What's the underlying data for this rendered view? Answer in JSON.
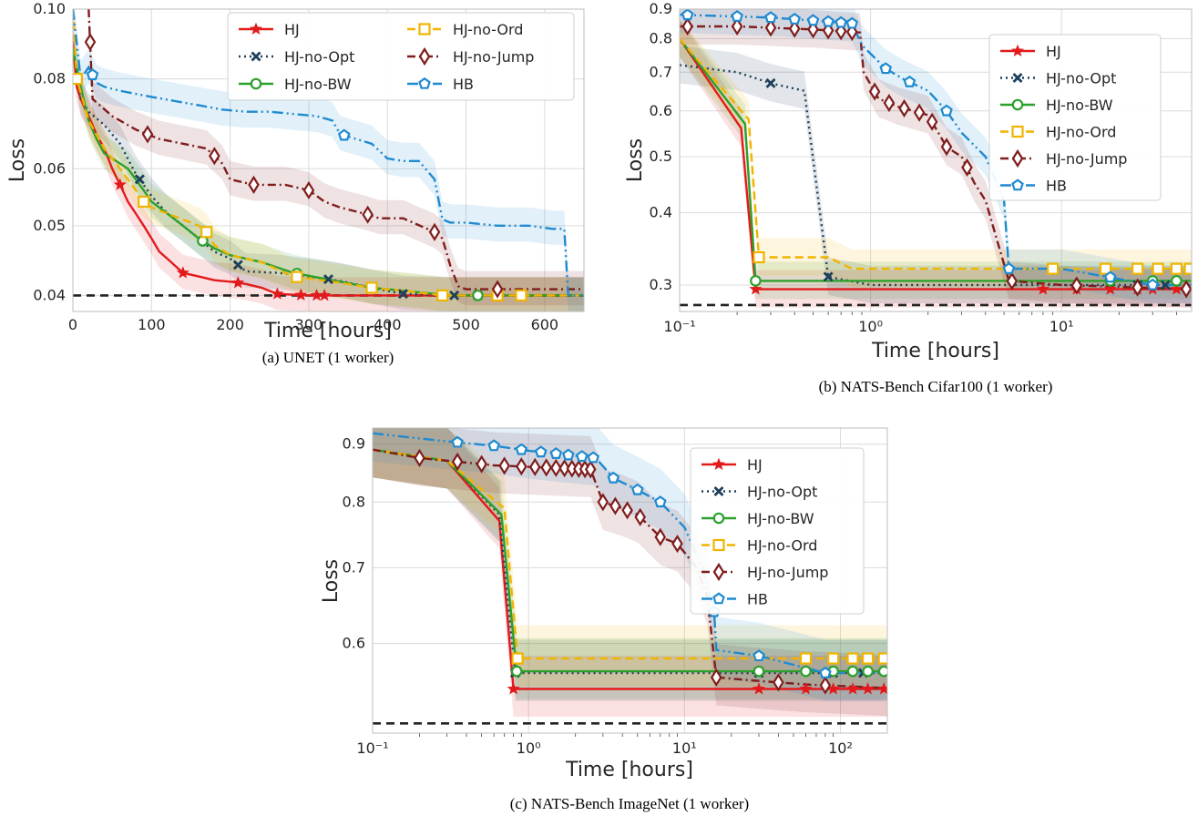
{
  "styles": {
    "HJ": {
      "color": "#e31a1c",
      "dash": "",
      "marker": "star"
    },
    "HJ-no-Opt": {
      "color": "#1f3f5a",
      "dash": "2,4",
      "marker": "x"
    },
    "HJ-no-BW": {
      "color": "#2ca02c",
      "dash": "",
      "marker": "circle"
    },
    "HJ-no-Ord": {
      "color": "#f0b400",
      "dash": "9,5",
      "marker": "square"
    },
    "HJ-no-Jump": {
      "color": "#7f1d1d",
      "dash": "9,4,2,4",
      "marker": "diamond"
    },
    "HB": {
      "color": "#1f8ad0",
      "dash": "12,4,2,4,2,4",
      "marker": "pentagon"
    }
  },
  "chart_data": [
    {
      "type": "line",
      "caption": "(a) UNET (1 worker)",
      "xlabel": "Time [hours]",
      "ylabel": "Loss",
      "xscale": "linear",
      "yscale": "log",
      "xlim": [
        0,
        650
      ],
      "ylim": [
        0.038,
        0.1
      ],
      "xticks": [
        0,
        100,
        200,
        300,
        400,
        500,
        600
      ],
      "xtick_labels": [
        "0",
        "100",
        "200",
        "300",
        "400",
        "500",
        "600"
      ],
      "yticks": [
        0.04,
        0.05,
        0.06,
        0.08,
        0.1
      ],
      "ytick_labels": [
        "0.04",
        "0.05",
        "0.06",
        "0.08",
        "0.10"
      ],
      "grid": true,
      "legend": {
        "columns": 2,
        "location": "top-right",
        "order": [
          "HJ",
          "HJ-no-Opt",
          "HJ-no-BW",
          "HJ-no-Ord",
          "HJ-no-Jump",
          "HB"
        ]
      },
      "baseline": 0.04,
      "series": [
        {
          "name": "HJ",
          "x": [
            0,
            5,
            10,
            20,
            30,
            40,
            50,
            60,
            70,
            80,
            90,
            100,
            110,
            120,
            140,
            160,
            180,
            200,
            220,
            240,
            260,
            300,
            320,
            650
          ],
          "y": [
            0.09,
            0.078,
            0.075,
            0.071,
            0.067,
            0.064,
            0.06,
            0.057,
            0.054,
            0.052,
            0.05,
            0.048,
            0.046,
            0.045,
            0.043,
            0.0425,
            0.042,
            0.0418,
            0.0415,
            0.041,
            0.0402,
            0.04,
            0.04,
            0.04
          ],
          "markers_x": [
            60,
            140,
            210,
            260,
            290,
            310,
            320
          ]
        },
        {
          "name": "HJ-no-Opt",
          "x": [
            0,
            10,
            20,
            40,
            60,
            80,
            100,
            120,
            140,
            160,
            180,
            200,
            220,
            260,
            300,
            340,
            380,
            420,
            480,
            650
          ],
          "y": [
            0.088,
            0.075,
            0.072,
            0.069,
            0.065,
            0.059,
            0.055,
            0.052,
            0.05,
            0.048,
            0.046,
            0.045,
            0.0432,
            0.043,
            0.0425,
            0.0419,
            0.041,
            0.0402,
            0.04,
            0.04
          ],
          "markers_x": [
            85,
            210,
            325,
            420,
            485,
            515
          ]
        },
        {
          "name": "HJ-no-BW",
          "x": [
            0,
            10,
            20,
            30,
            40,
            50,
            60,
            70,
            80,
            90,
            100,
            120,
            140,
            160,
            180,
            200,
            240,
            280,
            330,
            380,
            430,
            480,
            650
          ],
          "y": [
            0.088,
            0.078,
            0.07,
            0.066,
            0.063,
            0.062,
            0.061,
            0.06,
            0.058,
            0.056,
            0.054,
            0.052,
            0.05,
            0.048,
            0.0465,
            0.0455,
            0.0445,
            0.043,
            0.042,
            0.041,
            0.0405,
            0.04,
            0.04
          ],
          "markers_x": [
            165,
            285,
            380,
            515
          ]
        },
        {
          "name": "HJ-no-Ord",
          "x": [
            0,
            5,
            20,
            40,
            60,
            80,
            90,
            100,
            120,
            140,
            160,
            170,
            180,
            200,
            240,
            280,
            330,
            380,
            430,
            470,
            650
          ],
          "y": [
            0.1,
            0.08,
            0.07,
            0.064,
            0.06,
            0.056,
            0.054,
            0.053,
            0.052,
            0.051,
            0.05,
            0.049,
            0.047,
            0.0455,
            0.0445,
            0.0425,
            0.0418,
            0.041,
            0.0405,
            0.04,
            0.04
          ],
          "markers_x": [
            5,
            90,
            170,
            285,
            380,
            470,
            540,
            570
          ]
        },
        {
          "name": "HJ-no-Jump",
          "x": [
            20,
            25,
            50,
            80,
            110,
            140,
            170,
            190,
            200,
            230,
            270,
            300,
            320,
            340,
            370,
            390,
            420,
            460,
            470,
            480,
            490,
            500,
            650
          ],
          "y": [
            0.1,
            0.075,
            0.071,
            0.068,
            0.066,
            0.065,
            0.064,
            0.061,
            0.058,
            0.057,
            0.057,
            0.056,
            0.054,
            0.053,
            0.052,
            0.0512,
            0.0512,
            0.049,
            0.048,
            0.044,
            0.0412,
            0.0408,
            0.0408
          ],
          "markers_x": [
            22,
            95,
            180,
            230,
            300,
            375,
            460,
            540
          ]
        },
        {
          "name": "HB",
          "x": [
            0,
            10,
            20,
            30,
            40,
            60,
            100,
            130,
            160,
            190,
            220,
            250,
            280,
            310,
            330,
            340,
            350,
            380,
            400,
            420,
            440,
            460,
            470,
            480,
            500,
            540,
            580,
            610,
            625,
            630,
            650
          ],
          "y": [
            0.1,
            0.08,
            0.083,
            0.079,
            0.078,
            0.077,
            0.0755,
            0.0745,
            0.0735,
            0.0725,
            0.072,
            0.072,
            0.0715,
            0.071,
            0.07,
            0.067,
            0.0665,
            0.065,
            0.062,
            0.0615,
            0.0615,
            0.058,
            0.051,
            0.0505,
            0.0505,
            0.05,
            0.05,
            0.0495,
            0.0495,
            0.04,
            0.04
          ],
          "markers_x": [
            25,
            345
          ]
        }
      ]
    },
    {
      "type": "line",
      "caption": "(b) NATS-Bench Cifar100 (1 worker)",
      "xlabel": "Time [hours]",
      "ylabel": "Loss",
      "xscale": "log",
      "yscale": "log",
      "xlim": [
        0.1,
        48
      ],
      "ylim": [
        0.27,
        0.9
      ],
      "xticks": [
        0.1,
        1,
        10
      ],
      "xtick_labels": [
        "10⁻¹",
        "10⁰",
        "10¹"
      ],
      "yticks": [
        0.3,
        0.4,
        0.5,
        0.6,
        0.7,
        0.8,
        0.9
      ],
      "ytick_labels": [
        "0.3",
        "0.4",
        "0.5",
        "0.6",
        "0.7",
        "0.8",
        "0.9"
      ],
      "grid": true,
      "legend": {
        "columns": 1,
        "location": "right",
        "order": [
          "HJ",
          "HJ-no-Opt",
          "HJ-no-BW",
          "HJ-no-Ord",
          "HJ-no-Jump",
          "HB"
        ]
      },
      "baseline": 0.277,
      "series": [
        {
          "name": "HJ",
          "x": [
            0.1,
            0.21,
            0.25,
            48
          ],
          "y": [
            0.8,
            0.56,
            0.295,
            0.295
          ],
          "markers_x": [
            0.25,
            8,
            12,
            18,
            25,
            30,
            40
          ]
        },
        {
          "name": "HJ-no-Opt",
          "x": [
            0.1,
            0.2,
            0.3,
            0.45,
            0.6,
            1,
            48
          ],
          "y": [
            0.72,
            0.7,
            0.67,
            0.65,
            0.31,
            0.3,
            0.3
          ],
          "markers_x": [
            0.3,
            0.6,
            25,
            35
          ]
        },
        {
          "name": "HJ-no-BW",
          "x": [
            0.1,
            0.22,
            0.25,
            48
          ],
          "y": [
            0.8,
            0.57,
            0.305,
            0.305
          ],
          "markers_x": [
            0.25,
            18,
            30,
            40
          ]
        },
        {
          "name": "HJ-no-Ord",
          "x": [
            0.1,
            0.23,
            0.26,
            0.6,
            0.8,
            48
          ],
          "y": [
            0.8,
            0.58,
            0.335,
            0.335,
            0.32,
            0.32
          ],
          "markers_x": [
            0.26,
            9,
            17,
            25,
            32,
            40,
            47
          ]
        },
        {
          "name": "HJ-no-Jump",
          "x": [
            0.1,
            0.2,
            0.5,
            0.88,
            0.92,
            1.1,
            1.4,
            2,
            2.5,
            3,
            3.5,
            4,
            5.3,
            10,
            48
          ],
          "y": [
            0.84,
            0.84,
            0.83,
            0.82,
            0.7,
            0.63,
            0.61,
            0.59,
            0.52,
            0.5,
            0.45,
            0.42,
            0.305,
            0.3,
            0.295
          ],
          "markers_x": [
            0.11,
            0.2,
            0.3,
            0.4,
            0.5,
            0.6,
            0.7,
            0.8,
            1.05,
            1.25,
            1.5,
            1.8,
            2.1,
            2.5,
            3.2,
            5.5,
            12,
            25,
            45
          ]
        },
        {
          "name": "HB",
          "x": [
            0.1,
            0.3,
            0.5,
            0.8,
            0.9,
            1.2,
            1.5,
            2,
            2.5,
            3,
            4,
            5,
            5.3,
            10,
            30,
            48
          ],
          "y": [
            0.88,
            0.87,
            0.86,
            0.85,
            0.78,
            0.71,
            0.68,
            0.65,
            0.6,
            0.55,
            0.5,
            0.42,
            0.32,
            0.32,
            0.3,
            0.3
          ],
          "markers_x": [
            0.11,
            0.2,
            0.3,
            0.4,
            0.5,
            0.6,
            0.7,
            0.8,
            1.2,
            1.6,
            2.5,
            5.3,
            18,
            30
          ]
        }
      ]
    },
    {
      "type": "line",
      "caption": "(c) NATS-Bench ImageNet (1 worker)",
      "xlabel": "Time [hours]",
      "ylabel": "Loss",
      "xscale": "log",
      "yscale": "log",
      "xlim": [
        0.1,
        200
      ],
      "ylim": [
        0.5,
        0.93
      ],
      "xticks": [
        0.1,
        1,
        10,
        100
      ],
      "xtick_labels": [
        "10⁻¹",
        "10⁰",
        "10¹",
        "10²"
      ],
      "yticks": [
        0.6,
        0.7,
        0.8,
        0.9
      ],
      "ytick_labels": [
        "0.6",
        "0.7",
        "0.8",
        "0.9"
      ],
      "grid": true,
      "legend": {
        "columns": 1,
        "location": "top-right",
        "order": [
          "HJ",
          "HJ-no-Opt",
          "HJ-no-BW",
          "HJ-no-Ord",
          "HJ-no-Jump",
          "HB"
        ]
      },
      "baseline": 0.51,
      "series": [
        {
          "name": "HJ",
          "x": [
            0.1,
            0.3,
            0.65,
            0.8,
            200
          ],
          "y": [
            0.89,
            0.87,
            0.77,
            0.547,
            0.547
          ],
          "markers_x": [
            0.8,
            30,
            60,
            90,
            120,
            150,
            190
          ]
        },
        {
          "name": "HJ-no-Opt",
          "x": [
            0.1,
            0.3,
            0.65,
            0.82,
            200
          ],
          "y": [
            0.89,
            0.87,
            0.78,
            0.565,
            0.565
          ],
          "markers_x": [
            0.82,
            30,
            90,
            140
          ]
        },
        {
          "name": "HJ-no-BW",
          "x": [
            0.1,
            0.3,
            0.67,
            0.84,
            200
          ],
          "y": [
            0.89,
            0.87,
            0.78,
            0.567,
            0.567
          ],
          "markers_x": [
            0.84,
            30,
            60,
            90,
            120,
            150,
            190
          ]
        },
        {
          "name": "HJ-no-Ord",
          "x": [
            0.1,
            0.3,
            0.7,
            0.85,
            200
          ],
          "y": [
            0.89,
            0.87,
            0.79,
            0.582,
            0.582
          ],
          "markers_x": [
            0.85,
            60,
            90,
            120,
            150,
            190
          ]
        },
        {
          "name": "HJ-no-Jump",
          "x": [
            0.1,
            0.2,
            0.6,
            2.5,
            3,
            4,
            5,
            7,
            9,
            12,
            14,
            16,
            30,
            60,
            200
          ],
          "y": [
            0.89,
            0.875,
            0.862,
            0.855,
            0.8,
            0.79,
            0.78,
            0.745,
            0.735,
            0.7,
            0.66,
            0.56,
            0.556,
            0.552,
            0.548
          ],
          "markers_x": [
            0.2,
            0.35,
            0.5,
            0.7,
            0.9,
            1.1,
            1.3,
            1.5,
            1.7,
            1.9,
            2.1,
            2.3,
            2.5,
            3,
            3.6,
            4.3,
            5.2,
            7,
            9,
            16,
            40,
            80
          ]
        },
        {
          "name": "HB",
          "x": [
            0.1,
            0.3,
            0.6,
            1,
            2.7,
            3.5,
            5,
            7,
            10,
            13,
            15.5,
            16,
            30,
            80,
            200
          ],
          "y": [
            0.92,
            0.905,
            0.897,
            0.888,
            0.875,
            0.84,
            0.82,
            0.8,
            0.76,
            0.7,
            0.64,
            0.592,
            0.585,
            0.565,
            0.565
          ],
          "markers_x": [
            0.35,
            0.6,
            0.9,
            1.2,
            1.5,
            1.8,
            2.2,
            2.6,
            3.5,
            5,
            7,
            15.5,
            30,
            80
          ]
        }
      ]
    }
  ]
}
